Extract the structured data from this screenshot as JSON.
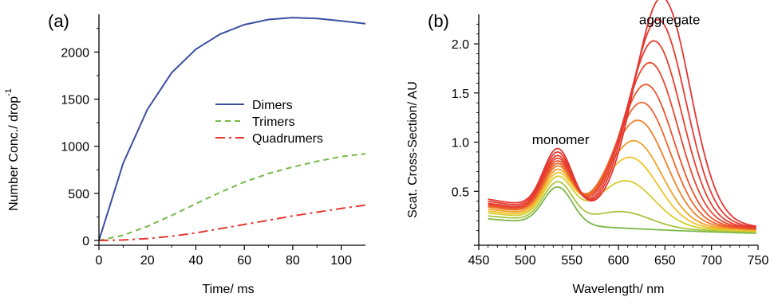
{
  "chart_data": [
    {
      "panel_label": "(a)",
      "type": "line",
      "title": "",
      "xlabel": "Time/ ms",
      "ylabel": "Number Conc./ drop",
      "ylabel_superscript": "-1",
      "xlim": [
        0,
        110
      ],
      "ylim": [
        0,
        2400
      ],
      "xticks": [
        0,
        20,
        40,
        60,
        80,
        100
      ],
      "yticks": [
        0,
        500,
        1000,
        1500,
        2000
      ],
      "grid": false,
      "legend_position": "center-right",
      "series": [
        {
          "name": "Dimers",
          "color": "#3a4fa0",
          "dash": "solid",
          "x": [
            0,
            10,
            20,
            30,
            40,
            50,
            60,
            70,
            80,
            90,
            100,
            110
          ],
          "y": [
            0,
            820,
            1390,
            1780,
            2030,
            2190,
            2290,
            2345,
            2365,
            2355,
            2330,
            2300
          ]
        },
        {
          "name": "Trimers",
          "color": "#76b94a",
          "dash": "dashed",
          "x": [
            0,
            10,
            20,
            30,
            40,
            50,
            60,
            70,
            80,
            90,
            100,
            110
          ],
          "y": [
            0,
            55,
            150,
            265,
            390,
            510,
            620,
            710,
            780,
            840,
            890,
            920
          ]
        },
        {
          "name": "Quadrumers",
          "color": "#e53a32",
          "dash": "dashdot",
          "x": [
            0,
            10,
            20,
            30,
            40,
            50,
            60,
            70,
            80,
            90,
            100,
            110
          ],
          "y": [
            0,
            5,
            20,
            45,
            80,
            125,
            170,
            215,
            260,
            300,
            340,
            375
          ]
        }
      ]
    },
    {
      "panel_label": "(b)",
      "type": "line",
      "title": "",
      "xlabel": "Wavelength/ nm",
      "ylabel": "Scat. Cross-Section/ AU",
      "xlim": [
        450,
        750
      ],
      "ylim": [
        0,
        2.3
      ],
      "xticks": [
        450,
        500,
        550,
        600,
        650,
        700,
        750
      ],
      "yticks": [
        0.5,
        1.0,
        1.5,
        2.0
      ],
      "ytick_labels": [
        "0.5",
        "1.0",
        "1.5",
        "2.0"
      ],
      "grid": false,
      "annotations": [
        {
          "text": "monomer",
          "x": 538,
          "y": 0.98
        },
        {
          "text": "aggregate",
          "x": 655,
          "y": 2.2
        }
      ],
      "curve_family": {
        "x_range": [
          460,
          750
        ],
        "monomer_peak_nm": 535,
        "aggregate_peak_nm_range": [
          600,
          647
        ],
        "curves": [
          {
            "color": "#79b74a",
            "peak_height": 0.0,
            "base": 0.22
          },
          {
            "color": "#a6c43e",
            "peak_height": 0.15,
            "base": 0.25
          },
          {
            "color": "#d6cd2d",
            "peak_height": 0.45,
            "base": 0.28
          },
          {
            "color": "#f0c22a",
            "peak_height": 0.68,
            "base": 0.3
          },
          {
            "color": "#f2a12a",
            "peak_height": 0.84,
            "base": 0.32
          },
          {
            "color": "#ee812b",
            "peak_height": 1.04,
            "base": 0.34
          },
          {
            "color": "#ec672d",
            "peak_height": 1.22,
            "base": 0.35
          },
          {
            "color": "#ea542f",
            "peak_height": 1.4,
            "base": 0.36
          },
          {
            "color": "#e84830",
            "peak_height": 1.62,
            "base": 0.37
          },
          {
            "color": "#e63f31",
            "peak_height": 1.84,
            "base": 0.38
          },
          {
            "color": "#e53a32",
            "peak_height": 2.05,
            "base": 0.4
          },
          {
            "color": "#e43532",
            "peak_height": 2.27,
            "base": 0.42
          }
        ]
      }
    }
  ]
}
